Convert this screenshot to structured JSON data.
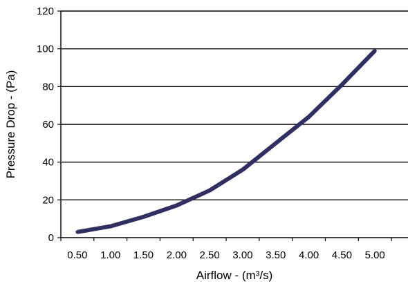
{
  "chart_data": {
    "type": "line",
    "title": "",
    "xlabel": "Airflow - (m³/s)",
    "ylabel": "Pressure Drop - (Pa)",
    "x": [
      0.5,
      1.0,
      1.5,
      2.0,
      2.5,
      3.0,
      3.5,
      4.0,
      4.5,
      5.0
    ],
    "x_tick_labels": [
      "0.50",
      "1.00",
      "1.50",
      "2.00",
      "2.50",
      "3.00",
      "3.50",
      "4.00",
      "4.50",
      "5.00"
    ],
    "series": [
      {
        "values": [
          3,
          6,
          11,
          17,
          25,
          36,
          50,
          64,
          81,
          99
        ],
        "color": "#2f2f62"
      }
    ],
    "ylim": [
      0,
      120
    ],
    "y_ticks": [
      0,
      20,
      40,
      60,
      80,
      100,
      120
    ],
    "grid": "horizontal",
    "legend": "none"
  }
}
